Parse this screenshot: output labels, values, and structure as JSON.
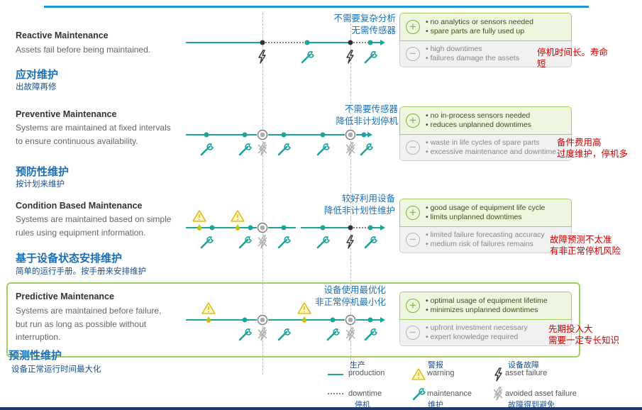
{
  "rows": [
    {
      "title": "Reactive Maintenance",
      "desc": "Assets fail before being maintained.",
      "title_cn": "应对维护",
      "sub_cn": "出故障再修",
      "note_cn": [
        "不需要复杂分析",
        "无需传感器"
      ],
      "pros": [
        "no analytics or sensors needed",
        "spare parts are fully used up"
      ],
      "cons": [
        "high downtimes",
        "failures damage the assets"
      ],
      "red_cn": [
        "停机时间长。寿命",
        "短"
      ]
    },
    {
      "title": "Preventive Maintenance",
      "desc": "Systems are maintained at fixed intervals to ensure continuous availability.",
      "title_cn": "预防性维护",
      "sub_cn": "按计划来维护",
      "note_cn": [
        "不需要传感器",
        "降低非计划停机"
      ],
      "pros": [
        "no in-process sensors needed",
        "reduces unplanned downtimes"
      ],
      "cons": [
        "waste in life cycles of spare parts",
        "excessive maintenance and downtime"
      ],
      "red_cn": [
        "备件费用高",
        "过度维护，停机多"
      ]
    },
    {
      "title": "Condition Based Maintenance",
      "desc": "Systems are maintained based on simple rules using equipment information.",
      "title_cn": "基于设备状态安排维护",
      "sub_cn": "简单的运行手册。按手册来安排维护",
      "note_cn": [
        "较好利用设备",
        "降低非计划性维护"
      ],
      "pros": [
        "good usage of equipment life cycle",
        "limits unplanned downtimes"
      ],
      "cons": [
        "limited failure forecasting accuracy",
        "medium risk of failures remains"
      ],
      "red_cn": [
        "故障预测不太准",
        "有非正常停机风险"
      ]
    },
    {
      "title": "Predictive Maintenance",
      "desc": "Systems are maintained before failure, but run as long as possible without interruption.",
      "title_cn": "预测性维护",
      "sub_cn": "设备正常运行时间最大化",
      "note_cn": [
        "设备使用最优化",
        "非正常停机最小化"
      ],
      "pros": [
        "optimal usage of equipment lifetime",
        "minimizes unplanned downtimes"
      ],
      "cons": [
        "upfront investment necessary",
        "expert knowledge required"
      ],
      "red_cn": [
        "先期投入大",
        "需要一定专长知识"
      ]
    }
  ],
  "legend": {
    "production": "production",
    "production_cn": "生产",
    "downtime": "downtime",
    "downtime_cn": "停机",
    "warning": "warning",
    "warning_cn": "警报",
    "maintenance": "maintenance",
    "maintenance_cn": "维护",
    "asset_failure": "asset failure",
    "asset_failure_cn": "设备故障",
    "avoided": "avoided asset failure",
    "avoided_cn": "故障得到避免"
  },
  "colors": {
    "production": "#1ba39c",
    "downtime": "#333333",
    "accent_blue": "#1a6fb5",
    "pro_green": "#a4ce62",
    "note_red": "#c80000",
    "warning_yellow": "#f2d21b"
  },
  "icons": [
    "plus-icon",
    "minus-icon",
    "wrench-icon",
    "lightning-icon",
    "crossed-lightning-icon",
    "warning-icon",
    "oil-drop-icon"
  ]
}
